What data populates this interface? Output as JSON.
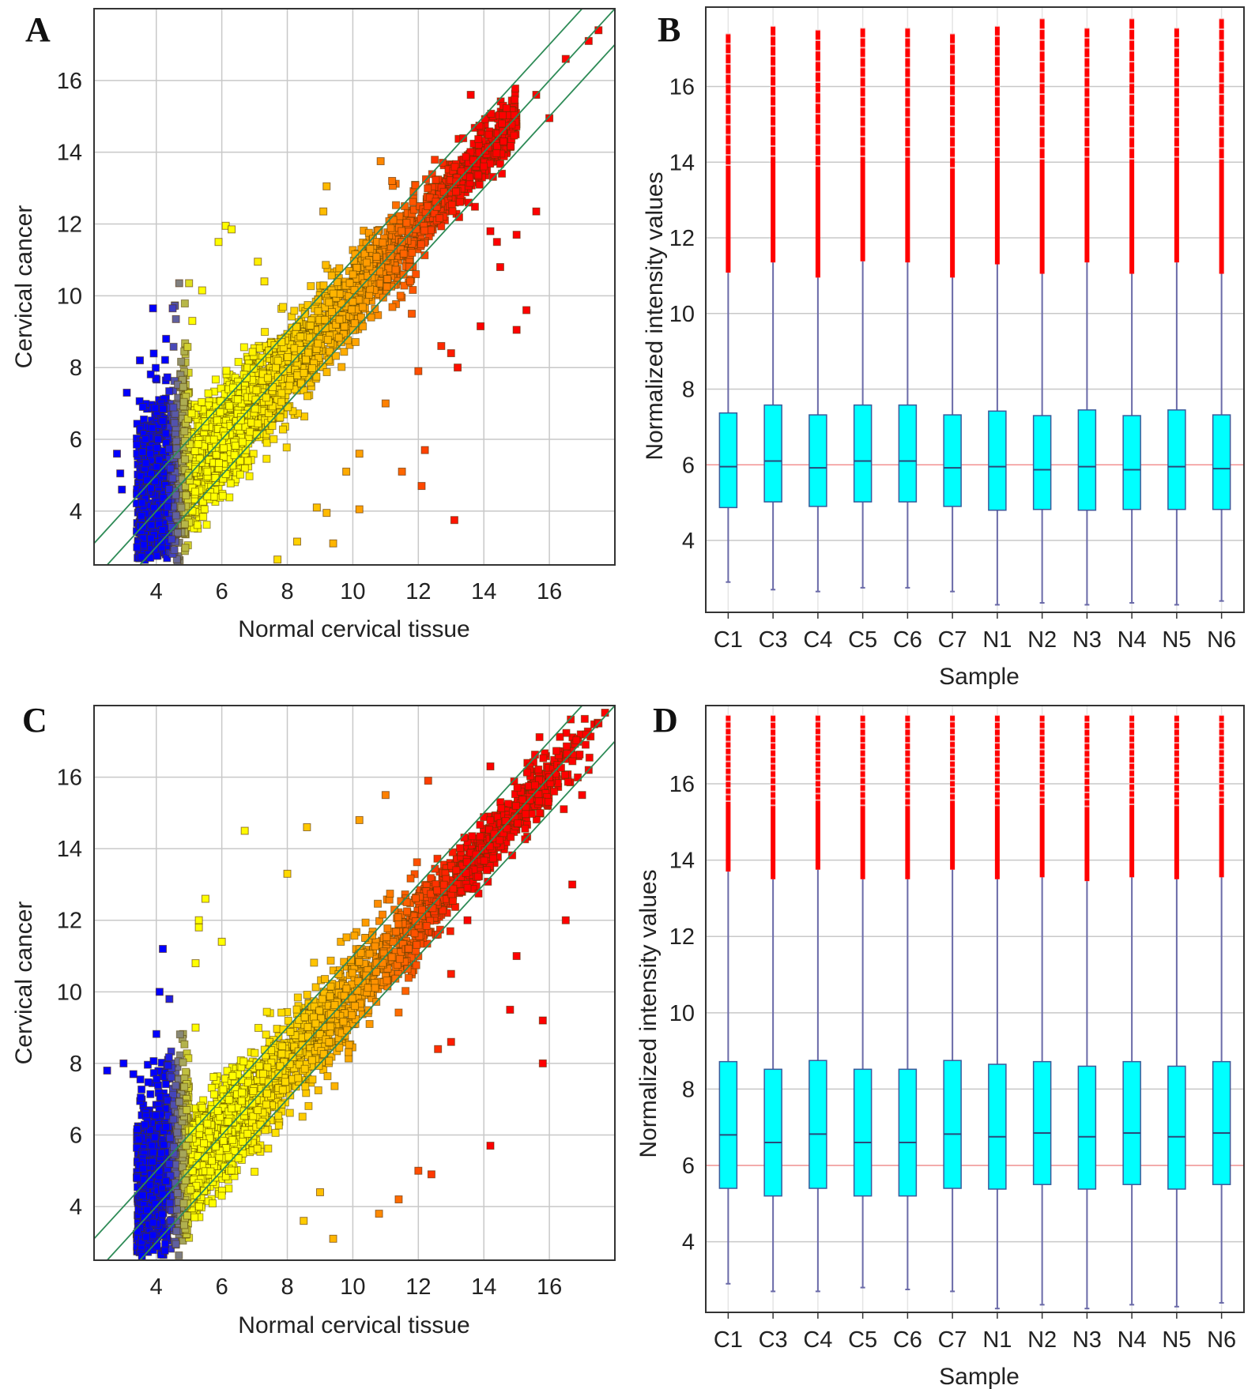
{
  "colors": {
    "low": "#0000ff",
    "mid_gray": "#808080",
    "yellow": "#ffff00",
    "orange": "#ff9900",
    "red": "#ff0000",
    "box": "#00ffff",
    "whisker": "#6a6aa8",
    "fold_lines": "#2e8b57",
    "median_line": "#ff8080",
    "grid": "#c8c8c8"
  },
  "chart_data": [
    {
      "panel": "A",
      "type": "scatter",
      "xlabel": "Normal cervical tissue",
      "ylabel": "Cervical cancer",
      "xlim": [
        2.1,
        18
      ],
      "ylim": [
        2.5,
        18
      ],
      "xticks": [
        4,
        6,
        8,
        10,
        12,
        14,
        16
      ],
      "yticks": [
        4,
        6,
        8,
        10,
        12,
        14,
        16
      ],
      "grid": true,
      "reference_lines": [
        {
          "slope": 1,
          "offset": 1
        },
        {
          "slope": 1,
          "offset": 0
        },
        {
          "slope": 1,
          "offset": -1
        }
      ],
      "color_by": "x value (blue low → yellow → orange → red high)",
      "points": [
        [
          6.12,
          11.95
        ],
        [
          6.3,
          11.85
        ],
        [
          5.9,
          11.5
        ],
        [
          7.1,
          10.95
        ],
        [
          7.3,
          10.4
        ],
        [
          9.2,
          13.05
        ],
        [
          10.85,
          13.75
        ],
        [
          9.1,
          12.35
        ],
        [
          11.2,
          13.2
        ],
        [
          13.6,
          15.6
        ],
        [
          15.3,
          9.6
        ],
        [
          15.0,
          9.05
        ],
        [
          13.9,
          9.15
        ],
        [
          14.5,
          10.8
        ],
        [
          14.4,
          11.5
        ],
        [
          13.2,
          8.0
        ],
        [
          13.1,
          3.75
        ],
        [
          12.1,
          4.7
        ],
        [
          12.2,
          5.7
        ],
        [
          11.5,
          5.1
        ],
        [
          9.4,
          3.1
        ],
        [
          10.2,
          4.05
        ],
        [
          9.2,
          3.95
        ],
        [
          8.3,
          3.15
        ],
        [
          7.7,
          2.65
        ],
        [
          4.7,
          10.35
        ],
        [
          5.0,
          10.35
        ],
        [
          3.9,
          9.65
        ],
        [
          4.5,
          9.65
        ],
        [
          4.6,
          9.35
        ],
        [
          5.1,
          9.3
        ],
        [
          5.4,
          10.15
        ],
        [
          4.3,
          8.8
        ],
        [
          3.5,
          8.2
        ],
        [
          3.1,
          7.3
        ],
        [
          2.8,
          5.6
        ],
        [
          2.9,
          5.05
        ],
        [
          2.95,
          4.6
        ],
        [
          15.6,
          12.35
        ],
        [
          15.6,
          15.6
        ],
        [
          16.0,
          14.95
        ],
        [
          17.5,
          17.4
        ],
        [
          17.2,
          17.1
        ],
        [
          16.5,
          16.6
        ],
        [
          14.6,
          14.3
        ],
        [
          12.0,
          7.9
        ],
        [
          11.0,
          7.0
        ],
        [
          10.2,
          5.6
        ],
        [
          9.8,
          5.1
        ],
        [
          8.9,
          4.1
        ],
        [
          15.0,
          11.7
        ],
        [
          14.2,
          11.8
        ],
        [
          12.7,
          8.6
        ],
        [
          13.0,
          8.4
        ],
        [
          11.8,
          9.5
        ]
      ]
    },
    {
      "panel": "B",
      "type": "box",
      "xlabel": "Sample",
      "ylabel": "Normalized intensity values",
      "ylim": [
        2.1,
        18.1
      ],
      "yticks": [
        4,
        6,
        8,
        10,
        12,
        14,
        16
      ],
      "grid": true,
      "categories": [
        "C1",
        "C3",
        "C4",
        "C5",
        "C6",
        "C7",
        "N1",
        "N2",
        "N3",
        "N4",
        "N5",
        "N6"
      ],
      "series": [
        {
          "min": 2.9,
          "q1": 4.87,
          "median": 5.95,
          "q3": 7.37,
          "whisker_high": 11.08,
          "max": 17.4
        },
        {
          "min": 2.7,
          "q1": 5.02,
          "median": 6.1,
          "q3": 7.58,
          "whisker_high": 11.35,
          "max": 17.6
        },
        {
          "min": 2.65,
          "q1": 4.9,
          "median": 5.92,
          "q3": 7.32,
          "whisker_high": 10.95,
          "max": 17.5
        },
        {
          "min": 2.75,
          "q1": 5.02,
          "median": 6.1,
          "q3": 7.58,
          "whisker_high": 11.38,
          "max": 17.55
        },
        {
          "min": 2.75,
          "q1": 5.02,
          "median": 6.1,
          "q3": 7.58,
          "whisker_high": 11.35,
          "max": 17.55
        },
        {
          "min": 2.65,
          "q1": 4.9,
          "median": 5.92,
          "q3": 7.32,
          "whisker_high": 10.95,
          "max": 17.4
        },
        {
          "min": 2.3,
          "q1": 4.8,
          "median": 5.95,
          "q3": 7.42,
          "whisker_high": 11.3,
          "max": 17.6
        },
        {
          "min": 2.35,
          "q1": 4.82,
          "median": 5.87,
          "q3": 7.3,
          "whisker_high": 11.05,
          "max": 17.8
        },
        {
          "min": 2.3,
          "q1": 4.8,
          "median": 5.95,
          "q3": 7.45,
          "whisker_high": 11.35,
          "max": 17.55
        },
        {
          "min": 2.35,
          "q1": 4.82,
          "median": 5.87,
          "q3": 7.3,
          "whisker_high": 11.05,
          "max": 17.8
        },
        {
          "min": 2.3,
          "q1": 4.82,
          "median": 5.95,
          "q3": 7.45,
          "whisker_high": 11.35,
          "max": 17.55
        },
        {
          "min": 2.4,
          "q1": 4.82,
          "median": 5.9,
          "q3": 7.32,
          "whisker_high": 11.05,
          "max": 17.8
        }
      ],
      "reference_line": 6
    },
    {
      "panel": "C",
      "type": "scatter",
      "xlabel": "Normal cervical tissue",
      "ylabel": "Cervical cancer",
      "xlim": [
        2.1,
        18
      ],
      "ylim": [
        2.5,
        18
      ],
      "xticks": [
        4,
        6,
        8,
        10,
        12,
        14,
        16
      ],
      "yticks": [
        4,
        6,
        8,
        10,
        12,
        14,
        16
      ],
      "grid": true,
      "reference_lines": [
        {
          "slope": 1,
          "offset": 1
        },
        {
          "slope": 1,
          "offset": 0
        },
        {
          "slope": 1,
          "offset": -1
        }
      ],
      "color_by": "x value (blue low → yellow → orange → red high)",
      "points": [
        [
          6.7,
          14.5
        ],
        [
          8.0,
          13.3
        ],
        [
          8.6,
          14.6
        ],
        [
          10.2,
          14.8
        ],
        [
          11.0,
          15.5
        ],
        [
          12.3,
          15.9
        ],
        [
          14.2,
          16.3
        ],
        [
          5.5,
          12.6
        ],
        [
          5.3,
          12.0
        ],
        [
          5.3,
          11.8
        ],
        [
          4.2,
          11.2
        ],
        [
          5.2,
          10.8
        ],
        [
          6.0,
          11.4
        ],
        [
          4.1,
          10.0
        ],
        [
          4.4,
          9.8
        ],
        [
          5.2,
          9.0
        ],
        [
          3.0,
          8.0
        ],
        [
          2.5,
          7.8
        ],
        [
          3.3,
          7.7
        ],
        [
          12.0,
          5.0
        ],
        [
          14.2,
          5.7
        ],
        [
          12.4,
          4.9
        ],
        [
          11.4,
          4.2
        ],
        [
          10.8,
          3.8
        ],
        [
          9.4,
          3.1
        ],
        [
          15.8,
          8.0
        ],
        [
          15.8,
          9.2
        ],
        [
          16.5,
          12.0
        ],
        [
          16.7,
          13.0
        ],
        [
          17.2,
          16.2
        ],
        [
          17.0,
          15.5
        ],
        [
          15.0,
          11.0
        ],
        [
          14.8,
          9.5
        ],
        [
          13.0,
          8.6
        ],
        [
          12.6,
          8.4
        ],
        [
          13.5,
          12.0
        ],
        [
          13.0,
          10.5
        ],
        [
          8.5,
          3.6
        ],
        [
          9.0,
          4.4
        ],
        [
          17.7,
          17.8
        ],
        [
          17.5,
          17.5
        ],
        [
          16.0,
          16.0
        ]
      ]
    },
    {
      "panel": "D",
      "type": "box",
      "xlabel": "Sample",
      "ylabel": "Normalized intensity values",
      "ylim": [
        2.15,
        18.05
      ],
      "yticks": [
        4,
        6,
        8,
        10,
        12,
        14,
        16
      ],
      "grid": true,
      "categories": [
        "C1",
        "C3",
        "C4",
        "C5",
        "C6",
        "C7",
        "N1",
        "N2",
        "N3",
        "N4",
        "N5",
        "N6"
      ],
      "series": [
        {
          "min": 2.9,
          "q1": 5.4,
          "median": 6.8,
          "q3": 8.72,
          "whisker_high": 13.7,
          "max": 17.8
        },
        {
          "min": 2.7,
          "q1": 5.2,
          "median": 6.6,
          "q3": 8.52,
          "whisker_high": 13.5,
          "max": 17.8
        },
        {
          "min": 2.7,
          "q1": 5.4,
          "median": 6.82,
          "q3": 8.75,
          "whisker_high": 13.75,
          "max": 17.8
        },
        {
          "min": 2.8,
          "q1": 5.2,
          "median": 6.6,
          "q3": 8.52,
          "whisker_high": 13.5,
          "max": 17.8
        },
        {
          "min": 2.75,
          "q1": 5.2,
          "median": 6.6,
          "q3": 8.52,
          "whisker_high": 13.5,
          "max": 17.8
        },
        {
          "min": 2.7,
          "q1": 5.4,
          "median": 6.82,
          "q3": 8.75,
          "whisker_high": 13.75,
          "max": 17.8
        },
        {
          "min": 2.25,
          "q1": 5.38,
          "median": 6.75,
          "q3": 8.65,
          "whisker_high": 13.5,
          "max": 17.8
        },
        {
          "min": 2.35,
          "q1": 5.5,
          "median": 6.85,
          "q3": 8.72,
          "whisker_high": 13.55,
          "max": 17.8
        },
        {
          "min": 2.25,
          "q1": 5.38,
          "median": 6.75,
          "q3": 8.6,
          "whisker_high": 13.45,
          "max": 17.8
        },
        {
          "min": 2.35,
          "q1": 5.5,
          "median": 6.85,
          "q3": 8.72,
          "whisker_high": 13.55,
          "max": 17.8
        },
        {
          "min": 2.3,
          "q1": 5.38,
          "median": 6.75,
          "q3": 8.6,
          "whisker_high": 13.5,
          "max": 17.8
        },
        {
          "min": 2.4,
          "q1": 5.5,
          "median": 6.85,
          "q3": 8.72,
          "whisker_high": 13.55,
          "max": 17.8
        }
      ],
      "reference_line": 6
    }
  ]
}
